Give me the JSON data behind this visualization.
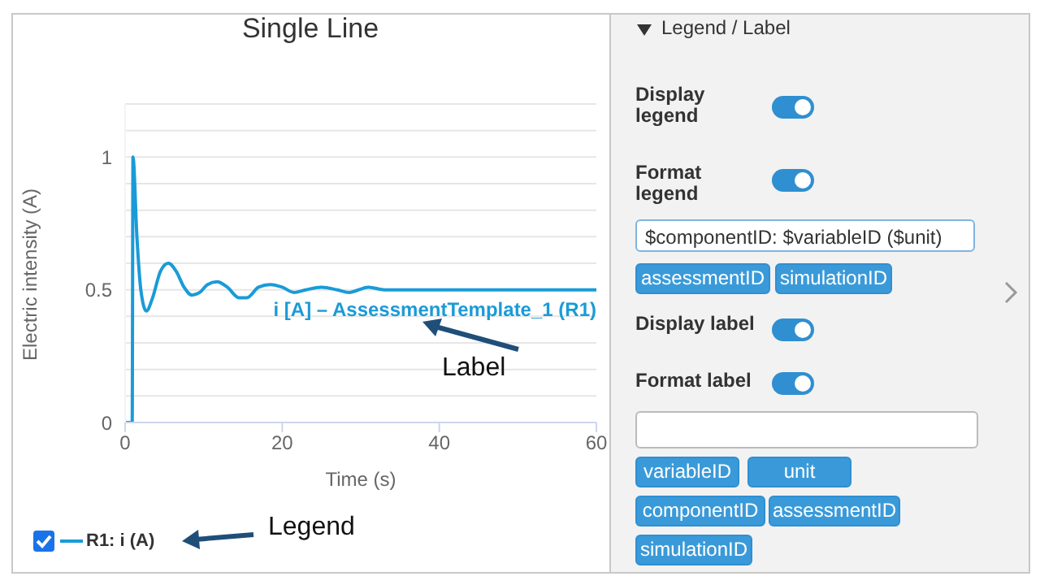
{
  "chart_data": {
    "type": "line",
    "title": "Single Line",
    "xlabel": "Time (s)",
    "ylabel": "Electric intensity (A)",
    "series": [
      {
        "name": "R1: i (A)",
        "color": "#1a9bd7",
        "x": [
          0,
          0.9,
          1,
          1.5,
          2,
          2.7,
          3.5,
          4.5,
          5.5,
          6.5,
          7.5,
          8.5,
          9.5,
          10.5,
          11.7,
          13,
          14.5,
          15.5,
          17,
          18.5,
          20,
          21.5,
          23,
          25,
          27,
          28.5,
          31,
          33,
          35,
          37,
          40,
          45,
          50,
          55,
          60
        ],
        "values": [
          0,
          0,
          1,
          0.7,
          0.5,
          0.42,
          0.47,
          0.57,
          0.6,
          0.57,
          0.51,
          0.48,
          0.49,
          0.52,
          0.53,
          0.51,
          0.47,
          0.47,
          0.51,
          0.52,
          0.51,
          0.49,
          0.5,
          0.51,
          0.5,
          0.49,
          0.51,
          0.5,
          0.5,
          0.5,
          0.5,
          0.5,
          0.5,
          0.5,
          0.5
        ]
      }
    ],
    "xlim": [
      0,
      60
    ],
    "xticks": [
      0,
      20,
      40,
      60
    ],
    "ylim": [
      0,
      1.2
    ],
    "yticks": [
      0,
      {
        "value": 0.1,
        "label": null
      },
      {
        "value": 0.2,
        "label": null
      },
      {
        "value": 0.3,
        "label": null
      },
      {
        "value": 0.4,
        "label": null
      },
      0.5,
      {
        "value": 0.6,
        "label": null
      },
      {
        "value": 0.7,
        "label": null
      },
      {
        "value": 0.8,
        "label": null
      },
      {
        "value": 0.9,
        "label": null
      },
      1,
      {
        "value": 1.1,
        "label": null
      },
      {
        "value": 1.2,
        "label": null
      }
    ],
    "grid": "y",
    "legend": "bottom left",
    "marker": "none",
    "line_style": "solid",
    "annotations": [
      {
        "text": "i [A] – AssessmentTemplate_1 (R1)",
        "x": 60,
        "y": 0.5
      },
      "Label",
      "Legend",
      "Legend / Label",
      "Display legend",
      "Format legend",
      "$componentID: $variableID ($unit)",
      "assessmentID",
      "simulationID",
      "Display label",
      "Format label",
      "variableID",
      "unit",
      "componentID",
      "assessmentID",
      "simulationID"
    ]
  }
}
